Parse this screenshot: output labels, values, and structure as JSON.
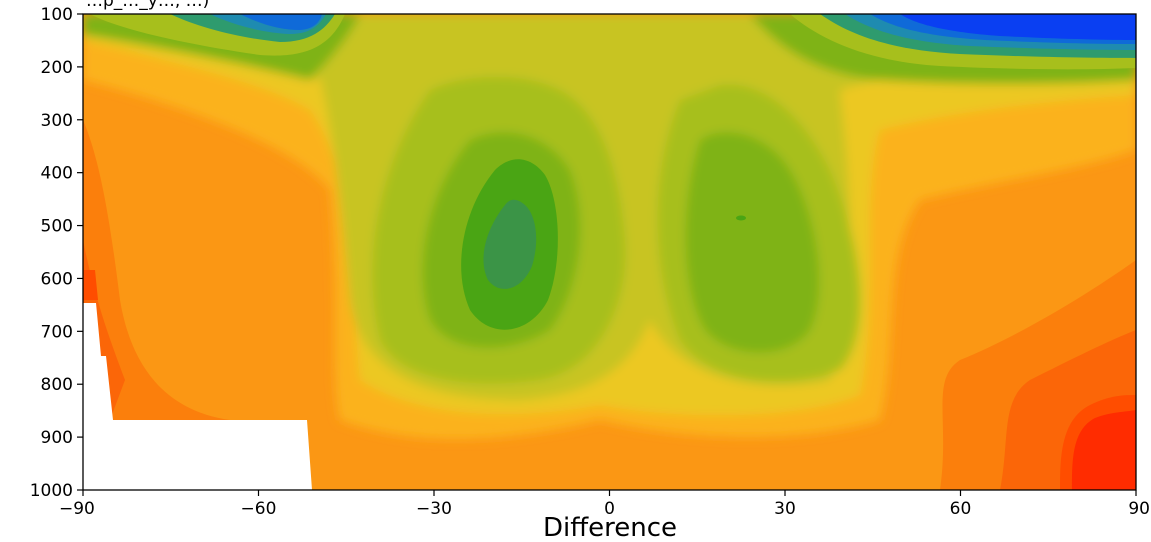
{
  "chart_data": {
    "type": "heatmap",
    "subtype": "filled-contour",
    "title": "…p_…_y…, …)",
    "xlabel": "Difference",
    "ylabel": "",
    "xlim": [
      -90,
      90
    ],
    "ylim": [
      1000,
      100
    ],
    "y_inverted": true,
    "x_ticks": [
      "−90",
      "−60",
      "−30",
      "0",
      "30",
      "60",
      "90"
    ],
    "y_ticks": [
      "100",
      "200",
      "300",
      "400",
      "500",
      "600",
      "700",
      "800",
      "900",
      "1000"
    ],
    "grid": false,
    "colormap": [
      "#0a3ff2",
      "#0f6ad8",
      "#1e8bb0",
      "#2e9b6e",
      "#3b9447",
      "#4aa514",
      "#7fb318",
      "#a7bf1c",
      "#c8c424",
      "#ecc824",
      "#fbb21a",
      "#fb9714",
      "#fb7f0c",
      "#fb6608",
      "#ff4d00",
      "#ff2c00"
    ],
    "masked_region": {
      "description": "blank area (no data)",
      "lat_range": [
        -90,
        -50
      ],
      "pressure_range": [
        870,
        1000
      ]
    },
    "features": [
      {
        "label": "min-left",
        "lat": -19,
        "p": 500,
        "level": 5
      },
      {
        "label": "min-right",
        "lat": 24,
        "p": 485,
        "level": 6
      },
      {
        "label": "strong-negative-upper-right",
        "lat": [
          45,
          90
        ],
        "p": [
          100,
          200
        ],
        "level": 0
      },
      {
        "label": "strong-negative-upper-left",
        "lat": [
          -60,
          -30
        ],
        "p": [
          100,
          130
        ],
        "level": 1
      },
      {
        "label": "max-lower-right",
        "lat": 85,
        "p": 950,
        "level": 15
      }
    ]
  }
}
